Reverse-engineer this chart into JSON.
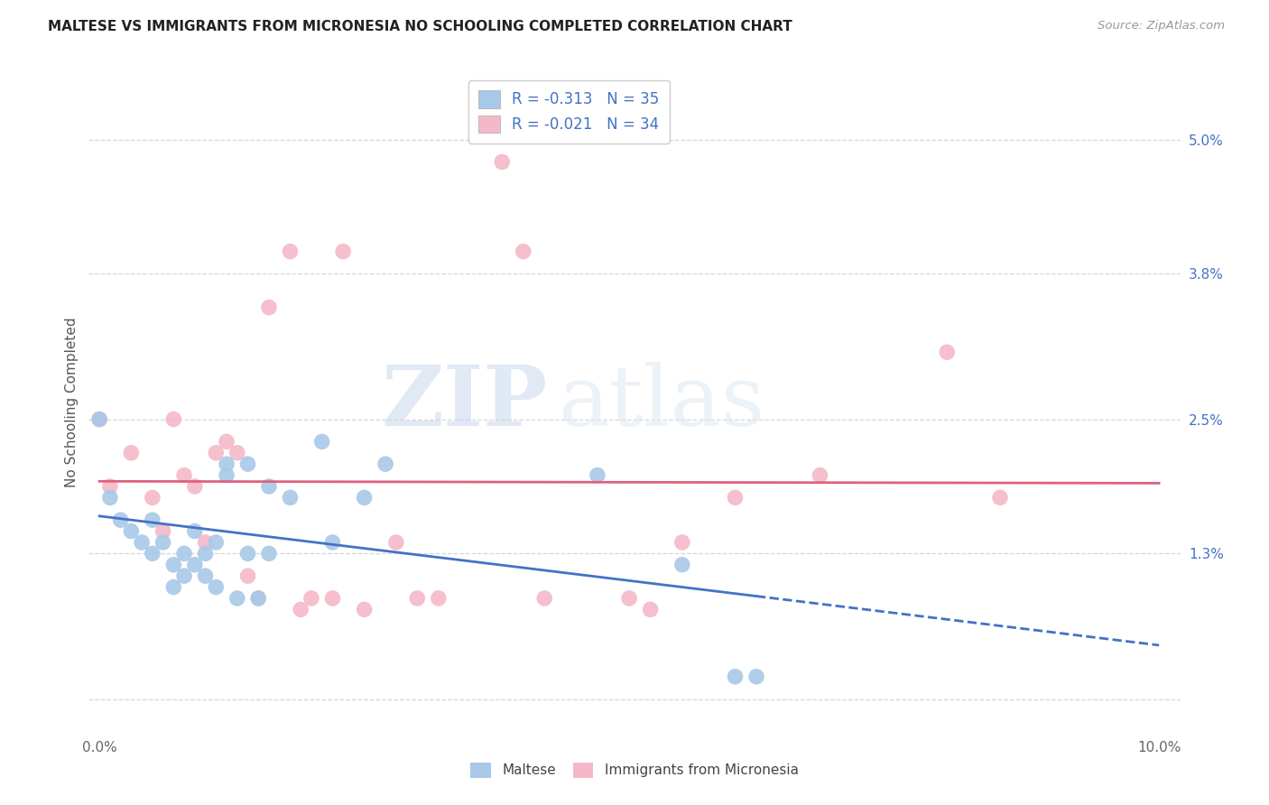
{
  "title": "MALTESE VS IMMIGRANTS FROM MICRONESIA NO SCHOOLING COMPLETED CORRELATION CHART",
  "source": "Source: ZipAtlas.com",
  "ylabel": "No Schooling Completed",
  "x_ticks": [
    0.0,
    0.02,
    0.04,
    0.06,
    0.08,
    0.1
  ],
  "x_tick_labels": [
    "0.0%",
    "",
    "",
    "",
    "",
    "10.0%"
  ],
  "y_ticks_right": [
    0.0,
    0.013,
    0.025,
    0.038,
    0.05
  ],
  "y_tick_labels_right": [
    "",
    "1.3%",
    "2.5%",
    "3.8%",
    "5.0%"
  ],
  "xlim": [
    -0.001,
    0.102
  ],
  "ylim": [
    -0.003,
    0.056
  ],
  "blue_color": "#a8c8e8",
  "pink_color": "#f4b8c8",
  "blue_line_color": "#4472c4",
  "pink_line_color": "#e06080",
  "legend_R_blue": "R = -0.313",
  "legend_N_blue": "N = 35",
  "legend_R_pink": "R = -0.021",
  "legend_N_pink": "N = 34",
  "watermark_zip": "ZIP",
  "watermark_atlas": "atlas",
  "legend_label_blue": "Maltese",
  "legend_label_pink": "Immigrants from Micronesia",
  "blue_scatter_x": [
    0.0,
    0.001,
    0.002,
    0.003,
    0.004,
    0.005,
    0.005,
    0.006,
    0.007,
    0.007,
    0.008,
    0.008,
    0.009,
    0.009,
    0.01,
    0.01,
    0.011,
    0.011,
    0.012,
    0.012,
    0.013,
    0.014,
    0.014,
    0.015,
    0.016,
    0.016,
    0.018,
    0.021,
    0.022,
    0.025,
    0.027,
    0.047,
    0.055,
    0.06,
    0.062
  ],
  "blue_scatter_y": [
    0.025,
    0.018,
    0.016,
    0.015,
    0.014,
    0.016,
    0.013,
    0.014,
    0.012,
    0.01,
    0.013,
    0.011,
    0.015,
    0.012,
    0.013,
    0.011,
    0.014,
    0.01,
    0.021,
    0.02,
    0.009,
    0.021,
    0.013,
    0.009,
    0.019,
    0.013,
    0.018,
    0.023,
    0.014,
    0.018,
    0.021,
    0.02,
    0.012,
    0.002,
    0.002
  ],
  "pink_scatter_x": [
    0.0,
    0.001,
    0.003,
    0.005,
    0.006,
    0.007,
    0.008,
    0.009,
    0.01,
    0.011,
    0.012,
    0.013,
    0.014,
    0.015,
    0.016,
    0.018,
    0.019,
    0.02,
    0.022,
    0.023,
    0.025,
    0.028,
    0.03,
    0.032,
    0.038,
    0.04,
    0.042,
    0.05,
    0.052,
    0.055,
    0.06,
    0.068,
    0.08,
    0.085
  ],
  "pink_scatter_y": [
    0.025,
    0.019,
    0.022,
    0.018,
    0.015,
    0.025,
    0.02,
    0.019,
    0.014,
    0.022,
    0.023,
    0.022,
    0.011,
    0.009,
    0.035,
    0.04,
    0.008,
    0.009,
    0.009,
    0.04,
    0.008,
    0.014,
    0.009,
    0.009,
    0.048,
    0.04,
    0.009,
    0.009,
    0.008,
    0.014,
    0.018,
    0.02,
    0.031,
    0.018
  ],
  "background_color": "#ffffff",
  "grid_color": "#cccccc"
}
